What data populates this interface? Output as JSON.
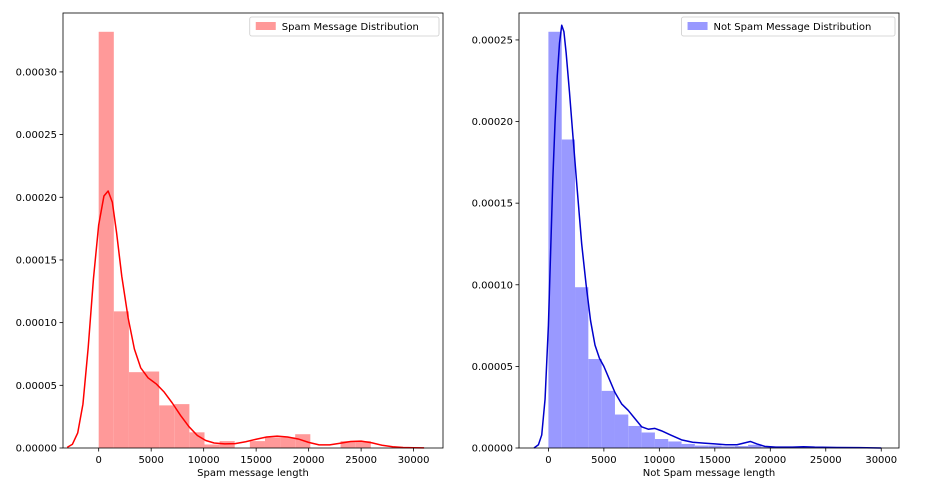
{
  "chart_data": [
    {
      "type": "histogram",
      "xlabel": "Spam message length",
      "ylabel": "",
      "xlim": [
        -3400,
        32800
      ],
      "ylim": [
        0,
        0.000347
      ],
      "xticks": [
        0,
        5000,
        10000,
        15000,
        20000,
        25000,
        30000
      ],
      "yticks": [
        0.0,
        5e-05,
        0.0001,
        0.00015,
        0.0002,
        0.00025,
        0.0003
      ],
      "ytick_labels": [
        "0.00000",
        "0.00005",
        "0.00010",
        "0.00015",
        "0.00020",
        "0.00025",
        "0.00030"
      ],
      "legend": {
        "label": "Spam Message Distribution",
        "position": "upper-right"
      },
      "color": "#ff0000",
      "bar_color": "#ff9999",
      "bin_width": 1440,
      "bins": [
        {
          "x0": 0,
          "value": 0.000332
        },
        {
          "x0": 1440,
          "value": 0.000109
        },
        {
          "x0": 2880,
          "value": 6.05e-05
        },
        {
          "x0": 4320,
          "value": 6.1e-05
        },
        {
          "x0": 5760,
          "value": 3.4e-05
        },
        {
          "x0": 7200,
          "value": 3.5e-05
        },
        {
          "x0": 8640,
          "value": 1.25e-05
        },
        {
          "x0": 10080,
          "value": 2.8e-06
        },
        {
          "x0": 11520,
          "value": 5.5e-06
        },
        {
          "x0": 12960,
          "value": 0.0
        },
        {
          "x0": 14400,
          "value": 5.5e-06
        },
        {
          "x0": 15840,
          "value": 8.5e-06
        },
        {
          "x0": 17280,
          "value": 8.5e-06
        },
        {
          "x0": 18720,
          "value": 1.1e-05
        },
        {
          "x0": 20160,
          "value": 0.0
        },
        {
          "x0": 21600,
          "value": 0.0
        },
        {
          "x0": 23040,
          "value": 5.5e-06
        },
        {
          "x0": 24480,
          "value": 5.5e-06
        }
      ],
      "kde": [
        [
          -3000,
          5e-07
        ],
        [
          -2500,
          3e-06
        ],
        [
          -2000,
          1.2e-05
        ],
        [
          -1500,
          3.5e-05
        ],
        [
          -1000,
          8e-05
        ],
        [
          -500,
          0.000135
        ],
        [
          0,
          0.000178
        ],
        [
          500,
          0.000201
        ],
        [
          900,
          0.000205
        ],
        [
          1300,
          0.000196
        ],
        [
          1700,
          0.000172
        ],
        [
          2200,
          0.000137
        ],
        [
          2800,
          0.000104
        ],
        [
          3400,
          7.9e-05
        ],
        [
          4000,
          6.4e-05
        ],
        [
          4700,
          5.6e-05
        ],
        [
          5500,
          5.1e-05
        ],
        [
          6200,
          4.5e-05
        ],
        [
          7000,
          3.6e-05
        ],
        [
          7800,
          2.6e-05
        ],
        [
          8600,
          1.7e-05
        ],
        [
          9400,
          1e-05
        ],
        [
          10200,
          6e-06
        ],
        [
          11000,
          4e-06
        ],
        [
          12000,
          3.3e-06
        ],
        [
          13000,
          3.5e-06
        ],
        [
          14000,
          5e-06
        ],
        [
          15000,
          7e-06
        ],
        [
          16000,
          8.8e-06
        ],
        [
          17000,
          9.5e-06
        ],
        [
          18000,
          8.8e-06
        ],
        [
          19000,
          7.2e-06
        ],
        [
          20000,
          4.5e-06
        ],
        [
          21000,
          2.5e-06
        ],
        [
          22000,
          2.5e-06
        ],
        [
          23000,
          3.8e-06
        ],
        [
          24000,
          5.2e-06
        ],
        [
          25000,
          5.5e-06
        ],
        [
          26000,
          4.2e-06
        ],
        [
          27000,
          2.2e-06
        ],
        [
          28000,
          1e-06
        ],
        [
          29000,
          4e-07
        ],
        [
          30000,
          2e-07
        ],
        [
          31000,
          1e-07
        ]
      ]
    },
    {
      "type": "histogram",
      "xlabel": "Not Spam message length",
      "ylabel": "",
      "xlim": [
        -2650,
        31600
      ],
      "ylim": [
        0,
        0.0002665
      ],
      "xticks": [
        0,
        5000,
        10000,
        15000,
        20000,
        25000,
        30000
      ],
      "yticks": [
        0.0,
        5e-05,
        0.0001,
        0.00015,
        0.0002,
        0.00025
      ],
      "ytick_labels": [
        "0.00000",
        "0.00005",
        "0.00010",
        "0.00015",
        "0.00020",
        "0.00025"
      ],
      "legend": {
        "label": "Not Spam Message Distribution",
        "position": "upper-right"
      },
      "color": "#0000cc",
      "bar_color": "#9999ff",
      "bin_width": 1200,
      "bins": [
        {
          "x0": 0,
          "value": 0.000255
        },
        {
          "x0": 1200,
          "value": 0.000189
        },
        {
          "x0": 2400,
          "value": 9.85e-05
        },
        {
          "x0": 3600,
          "value": 5.45e-05
        },
        {
          "x0": 4800,
          "value": 3.5e-05
        },
        {
          "x0": 6000,
          "value": 2.05e-05
        },
        {
          "x0": 7200,
          "value": 1.35e-05
        },
        {
          "x0": 8400,
          "value": 9.5e-06
        },
        {
          "x0": 9600,
          "value": 5.5e-06
        },
        {
          "x0": 10800,
          "value": 4e-06
        },
        {
          "x0": 12000,
          "value": 2.5e-06
        },
        {
          "x0": 13200,
          "value": 1.5e-06
        },
        {
          "x0": 14400,
          "value": 1.5e-06
        },
        {
          "x0": 15600,
          "value": 1e-06
        },
        {
          "x0": 16800,
          "value": 1.2e-06
        },
        {
          "x0": 18000,
          "value": 2e-06
        },
        {
          "x0": 19200,
          "value": 5e-07
        },
        {
          "x0": 20400,
          "value": 5e-07
        },
        {
          "x0": 21600,
          "value": 3e-07
        },
        {
          "x0": 22800,
          "value": 2e-07
        },
        {
          "x0": 24000,
          "value": 2e-07
        },
        {
          "x0": 25200,
          "value": 1e-07
        },
        {
          "x0": 26400,
          "value": 1e-07
        },
        {
          "x0": 27600,
          "value": 1e-07
        },
        {
          "x0": 28800,
          "value": 1e-07
        }
      ],
      "kde": [
        [
          -1300,
          0.0
        ],
        [
          -900,
          2e-06
        ],
        [
          -600,
          8e-06
        ],
        [
          -300,
          3e-05
        ],
        [
          0,
          7.5e-05
        ],
        [
          200,
          0.00012
        ],
        [
          400,
          0.000165
        ],
        [
          600,
          0.0002
        ],
        [
          800,
          0.000228
        ],
        [
          1000,
          0.000248
        ],
        [
          1200,
          0.000259
        ],
        [
          1400,
          0.000255
        ],
        [
          1600,
          0.000242
        ],
        [
          1900,
          0.000218
        ],
        [
          2200,
          0.000192
        ],
        [
          2600,
          0.000158
        ],
        [
          3000,
          0.000125
        ],
        [
          3400,
          0.0001
        ],
        [
          3800,
          7.8e-05
        ],
        [
          4200,
          6.3e-05
        ],
        [
          4600,
          5.5e-05
        ],
        [
          5000,
          5e-05
        ],
        [
          5500,
          4.2e-05
        ],
        [
          6000,
          3.4e-05
        ],
        [
          6600,
          2.7e-05
        ],
        [
          7200,
          2.3e-05
        ],
        [
          7800,
          1.8e-05
        ],
        [
          8400,
          1.3e-05
        ],
        [
          9000,
          1.15e-05
        ],
        [
          9600,
          1.2e-05
        ],
        [
          10200,
          1.05e-05
        ],
        [
          11000,
          8e-06
        ],
        [
          12000,
          5e-06
        ],
        [
          13000,
          3.5e-06
        ],
        [
          14000,
          3e-06
        ],
        [
          15000,
          2.5e-06
        ],
        [
          16000,
          2e-06
        ],
        [
          17000,
          2e-06
        ],
        [
          17600,
          3e-06
        ],
        [
          18200,
          4e-06
        ],
        [
          18800,
          2.5e-06
        ],
        [
          19500,
          1e-06
        ],
        [
          20500,
          5e-07
        ],
        [
          22000,
          5e-07
        ],
        [
          23000,
          8e-07
        ],
        [
          24000,
          5e-07
        ],
        [
          26000,
          3e-07
        ],
        [
          28000,
          2e-07
        ],
        [
          30000,
          0.0
        ]
      ]
    }
  ]
}
